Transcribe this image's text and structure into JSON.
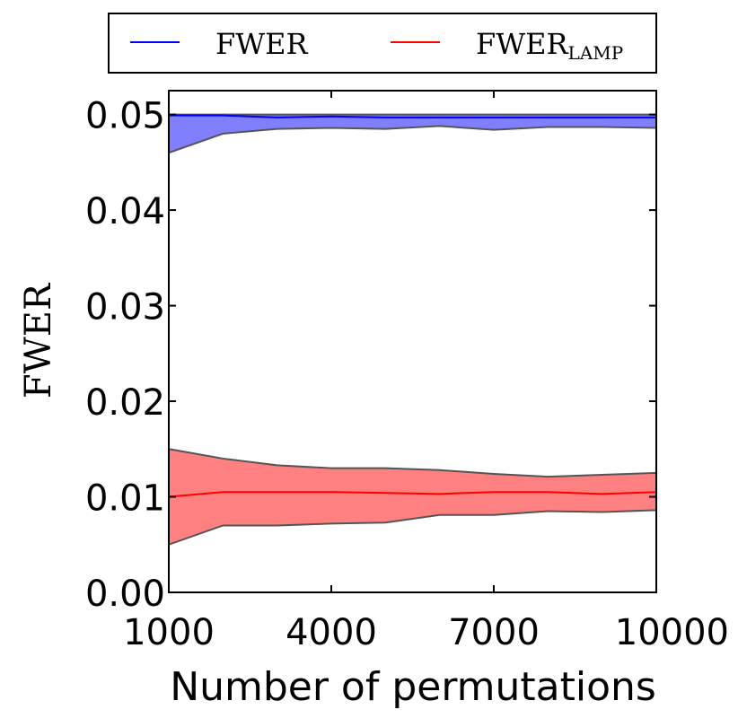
{
  "chart_data": {
    "type": "line",
    "xlabel": "Number of permutations",
    "ylabel": "FWER",
    "x": [
      1000,
      2000,
      3000,
      4000,
      5000,
      6000,
      7000,
      8000,
      9000,
      10000
    ],
    "xlim": [
      1000,
      10000
    ],
    "xticks": [
      1000,
      4000,
      7000,
      10000
    ],
    "ylim": [
      0,
      0.0525
    ],
    "yticks": [
      {
        "value": 0,
        "label": "0.00"
      },
      0.01,
      0.02,
      0.03,
      0.04,
      0.05
    ],
    "series": [
      {
        "name": "FWER",
        "color": "#0000ff",
        "fill": "#8080ff",
        "values": [
          0.0499,
          0.0499,
          0.0497,
          0.0498,
          0.0497,
          0.0497,
          0.0497,
          0.0497,
          0.0497,
          0.0497
        ],
        "upper": [
          0.05,
          0.05,
          0.05,
          0.05,
          0.05,
          0.05,
          0.05,
          0.05,
          0.05,
          0.05
        ],
        "lower": [
          0.046,
          0.048,
          0.0485,
          0.0486,
          0.0485,
          0.0488,
          0.0484,
          0.0487,
          0.0487,
          0.0486
        ]
      },
      {
        "name": "FWER",
        "name_subscript": "LAMP",
        "color": "#ff0000",
        "fill": "#ff8080",
        "values": [
          0.01,
          0.0105,
          0.0105,
          0.0105,
          0.0104,
          0.0103,
          0.0105,
          0.0105,
          0.0103,
          0.0105
        ],
        "upper": [
          0.015,
          0.014,
          0.0133,
          0.013,
          0.013,
          0.0128,
          0.0124,
          0.0121,
          0.0123,
          0.0125
        ],
        "lower": [
          0.005,
          0.007,
          0.007,
          0.0072,
          0.0073,
          0.0081,
          0.0081,
          0.0085,
          0.0084,
          0.0086
        ]
      }
    ]
  }
}
